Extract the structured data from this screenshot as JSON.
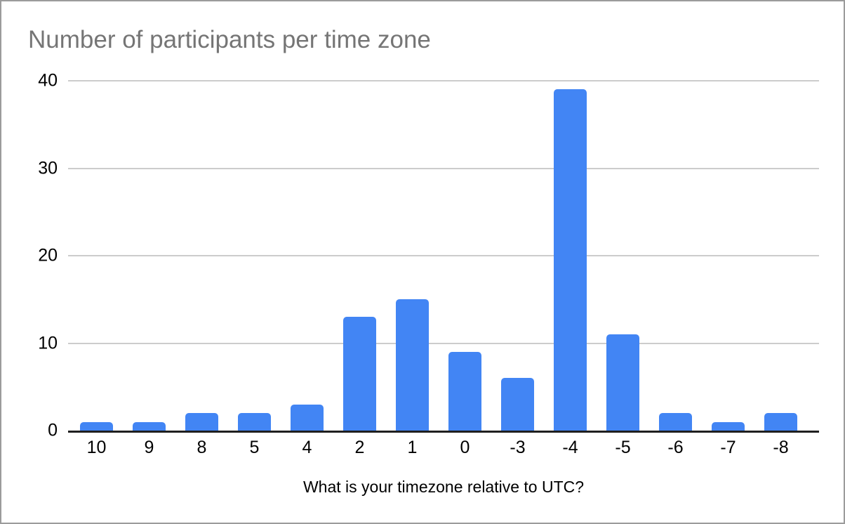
{
  "window": {
    "background": "#ffffff",
    "border_color": "#9b9b9b"
  },
  "colors": {
    "bar": "#4285f4",
    "title_text": "#757575",
    "tick_label": "#000000",
    "gridline": "#cccccc",
    "axis_line": "#1f1f1f"
  },
  "chart_data": {
    "type": "bar",
    "title": "Number of participants per time zone",
    "xlabel": "What is your timezone relative to UTC?",
    "ylabel": "",
    "categories": [
      "10",
      "9",
      "8",
      "5",
      "4",
      "2",
      "1",
      "0",
      "-3",
      "-4",
      "-5",
      "-6",
      "-7",
      "-8"
    ],
    "values": [
      1,
      1,
      2,
      2,
      3,
      13,
      15,
      9,
      6,
      39,
      11,
      2,
      1,
      2
    ],
    "ylim": [
      0,
      40
    ],
    "y_ticks": [
      0,
      10,
      20,
      30,
      40
    ],
    "grid": true,
    "legend_position": "none"
  }
}
